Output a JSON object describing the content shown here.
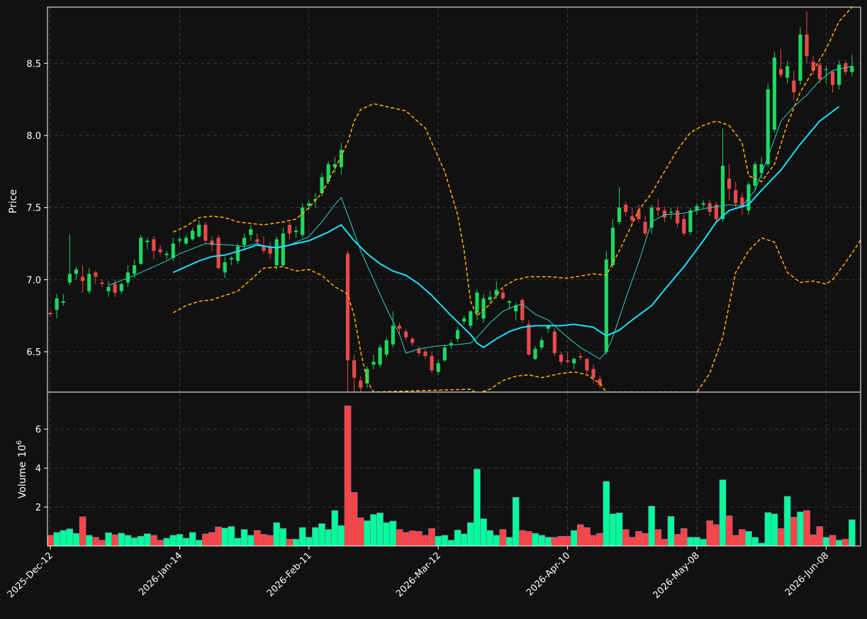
{
  "chart_data": {
    "type": "candlestick",
    "xlabels": [
      "2025-Dec-12",
      "2026-Jan-14",
      "2026-Feb-11",
      "2026-Mar-12",
      "2026-Apr-10",
      "2026-May-08",
      "2026-Jun-08"
    ],
    "xlabel_index": [
      0,
      20,
      40,
      60,
      80,
      100,
      120
    ],
    "price_panel": {
      "ylabel": "Price",
      "ylim": [
        6.22,
        8.89
      ],
      "yticks": [
        6.5,
        7.0,
        7.5,
        8.0,
        8.5
      ]
    },
    "volume_panel": {
      "ylabel": "Volume",
      "ylabel_exp": "6",
      "ylim": [
        0,
        7.9
      ],
      "yticks": [
        2,
        4,
        6
      ]
    },
    "grid": true,
    "colors": {
      "background": "#111111",
      "up": "#1ed760",
      "down": "#e84a4a",
      "vol_up": "#00ff99",
      "vol_down": "#ff4444",
      "ma_fast": "#2ad3c8",
      "ma_slow": "#1ae0ff",
      "bands": "#ffa500",
      "grid": "#3a3a3a",
      "text": "#ffffff"
    },
    "volume": [
      0.55,
      0.7,
      0.8,
      0.88,
      0.65,
      1.5,
      0.55,
      0.45,
      0.3,
      0.68,
      0.58,
      0.66,
      0.55,
      0.42,
      0.5,
      0.63,
      0.55,
      0.3,
      0.4,
      0.55,
      0.6,
      0.4,
      0.7,
      0.3,
      0.62,
      0.7,
      0.98,
      0.92,
      1.0,
      0.4,
      0.85,
      0.55,
      0.8,
      0.6,
      0.55,
      1.2,
      0.9,
      0.35,
      0.35,
      0.95,
      0.45,
      0.95,
      1.15,
      0.85,
      1.82,
      1.05,
      7.2,
      2.75,
      1.45,
      1.3,
      1.62,
      1.7,
      1.2,
      1.28,
      0.85,
      0.7,
      0.78,
      0.75,
      0.55,
      0.9,
      0.5,
      0.55,
      0.3,
      0.82,
      0.62,
      1.2,
      3.95,
      1.4,
      0.8,
      0.55,
      0.85,
      0.45,
      2.5,
      0.8,
      0.75,
      0.65,
      0.55,
      0.45,
      0.45,
      0.5,
      0.5,
      0.8,
      1.1,
      0.95,
      0.55,
      0.65,
      3.32,
      1.65,
      1.7,
      0.85,
      0.45,
      0.75,
      0.65,
      2.05,
      0.85,
      0.35,
      1.52,
      0.6,
      0.9,
      0.45,
      0.45,
      0.35,
      1.3,
      1.1,
      3.4,
      1.55,
      0.55,
      0.85,
      0.75,
      0.45,
      0.15,
      1.72,
      1.65,
      0.9,
      2.55,
      1.48,
      1.75,
      1.82,
      0.58,
      1.0,
      0.45,
      0.55,
      0.3,
      0.35,
      1.35
    ],
    "ohlc": [
      [
        6.77,
        6.78,
        6.74,
        6.76
      ],
      [
        6.79,
        6.9,
        6.73,
        6.87
      ],
      [
        6.84,
        6.9,
        6.82,
        6.85
      ],
      [
        6.98,
        7.31,
        6.96,
        7.04
      ],
      [
        7.04,
        7.09,
        7.0,
        7.07
      ],
      [
        7.02,
        7.1,
        6.91,
        6.99
      ],
      [
        6.92,
        7.08,
        6.9,
        7.04
      ],
      [
        7.05,
        7.06,
        6.97,
        7.02
      ],
      [
        6.98,
        7.0,
        6.95,
        6.97
      ],
      [
        6.92,
        6.99,
        6.88,
        6.95
      ],
      [
        6.97,
        7.0,
        6.88,
        6.91
      ],
      [
        6.92,
        6.98,
        6.9,
        6.97
      ],
      [
        6.98,
        7.1,
        6.95,
        7.05
      ],
      [
        7.04,
        7.14,
        7.01,
        7.1
      ],
      [
        7.11,
        7.31,
        7.1,
        7.29
      ],
      [
        7.26,
        7.29,
        7.21,
        7.27
      ],
      [
        7.28,
        7.3,
        7.14,
        7.2
      ],
      [
        7.21,
        7.24,
        7.17,
        7.19
      ],
      [
        7.17,
        7.2,
        7.14,
        7.18
      ],
      [
        7.15,
        7.29,
        7.13,
        7.25
      ],
      [
        7.27,
        7.3,
        7.25,
        7.28
      ],
      [
        7.25,
        7.31,
        7.24,
        7.29
      ],
      [
        7.28,
        7.36,
        7.27,
        7.34
      ],
      [
        7.3,
        7.41,
        7.29,
        7.38
      ],
      [
        7.38,
        7.4,
        7.25,
        7.27
      ],
      [
        7.27,
        7.3,
        7.2,
        7.24
      ],
      [
        7.29,
        7.31,
        7.07,
        7.08
      ],
      [
        7.05,
        7.16,
        7.01,
        7.12
      ],
      [
        7.14,
        7.16,
        7.1,
        7.15
      ],
      [
        7.13,
        7.25,
        7.11,
        7.23
      ],
      [
        7.24,
        7.32,
        7.2,
        7.29
      ],
      [
        7.31,
        7.38,
        7.27,
        7.35
      ],
      [
        7.28,
        7.32,
        7.24,
        7.26
      ],
      [
        7.23,
        7.3,
        7.18,
        7.2
      ],
      [
        7.22,
        7.26,
        7.15,
        7.18
      ],
      [
        7.1,
        7.3,
        7.07,
        7.28
      ],
      [
        7.1,
        7.36,
        7.09,
        7.32
      ],
      [
        7.38,
        7.4,
        7.28,
        7.32
      ],
      [
        7.33,
        7.37,
        7.29,
        7.34
      ],
      [
        7.31,
        7.53,
        7.29,
        7.5
      ],
      [
        7.51,
        7.55,
        7.48,
        7.53
      ],
      [
        7.55,
        7.6,
        7.5,
        7.56
      ],
      [
        7.6,
        7.74,
        7.58,
        7.71
      ],
      [
        7.68,
        7.82,
        7.66,
        7.8
      ],
      [
        7.78,
        7.85,
        7.74,
        7.8
      ],
      [
        7.78,
        7.95,
        7.73,
        7.9
      ],
      [
        7.18,
        7.2,
        6.22,
        6.44
      ],
      [
        6.44,
        6.48,
        6.22,
        6.32
      ],
      [
        6.3,
        6.33,
        6.15,
        6.25
      ],
      [
        6.28,
        6.4,
        6.25,
        6.38
      ],
      [
        6.41,
        6.48,
        6.38,
        6.43
      ],
      [
        6.41,
        6.55,
        6.39,
        6.53
      ],
      [
        6.48,
        6.6,
        6.46,
        6.58
      ],
      [
        6.55,
        6.78,
        6.53,
        6.68
      ],
      [
        6.68,
        6.7,
        6.62,
        6.66
      ],
      [
        6.64,
        6.66,
        6.58,
        6.6
      ],
      [
        6.59,
        6.6,
        6.54,
        6.56
      ],
      [
        6.52,
        6.54,
        6.47,
        6.49
      ],
      [
        6.5,
        6.52,
        6.45,
        6.47
      ],
      [
        6.47,
        6.5,
        6.35,
        6.37
      ],
      [
        6.36,
        6.44,
        6.34,
        6.42
      ],
      [
        6.44,
        6.55,
        6.43,
        6.53
      ],
      [
        6.55,
        6.58,
        6.52,
        6.56
      ],
      [
        6.59,
        6.67,
        6.57,
        6.65
      ],
      [
        6.71,
        6.75,
        6.69,
        6.73
      ],
      [
        6.68,
        6.79,
        6.66,
        6.78
      ],
      [
        6.77,
        6.93,
        6.72,
        6.91
      ],
      [
        6.73,
        6.9,
        6.7,
        6.87
      ],
      [
        6.86,
        6.92,
        6.84,
        6.88
      ],
      [
        6.89,
        6.99,
        6.87,
        6.93
      ],
      [
        6.91,
        6.94,
        6.86,
        6.87
      ],
      [
        6.84,
        6.86,
        6.8,
        6.85
      ],
      [
        6.78,
        6.84,
        6.72,
        6.82
      ],
      [
        6.86,
        6.87,
        6.7,
        6.72
      ],
      [
        6.69,
        6.72,
        6.47,
        6.48
      ],
      [
        6.45,
        6.54,
        6.44,
        6.52
      ],
      [
        6.53,
        6.6,
        6.51,
        6.58
      ],
      [
        6.66,
        6.69,
        6.63,
        6.68
      ],
      [
        6.64,
        6.66,
        6.47,
        6.49
      ],
      [
        6.48,
        6.5,
        6.41,
        6.43
      ],
      [
        6.44,
        6.5,
        6.42,
        6.43
      ],
      [
        6.42,
        6.46,
        6.38,
        6.45
      ],
      [
        6.47,
        6.49,
        6.44,
        6.46
      ],
      [
        6.45,
        6.46,
        6.35,
        6.37
      ],
      [
        6.38,
        6.41,
        6.28,
        6.32
      ],
      [
        6.31,
        6.33,
        6.25,
        6.27
      ],
      [
        6.5,
        7.2,
        6.48,
        7.14
      ],
      [
        7.1,
        7.42,
        7.08,
        7.36
      ],
      [
        7.4,
        7.64,
        7.38,
        7.5
      ],
      [
        7.52,
        7.54,
        7.44,
        7.47
      ],
      [
        7.44,
        7.5,
        7.38,
        7.41
      ],
      [
        7.48,
        7.52,
        7.4,
        7.42
      ],
      [
        7.4,
        7.44,
        7.3,
        7.32
      ],
      [
        7.36,
        7.52,
        7.32,
        7.5
      ],
      [
        7.5,
        7.56,
        7.44,
        7.48
      ],
      [
        7.48,
        7.51,
        7.4,
        7.43
      ],
      [
        7.47,
        7.5,
        7.42,
        7.47
      ],
      [
        7.48,
        7.51,
        7.36,
        7.39
      ],
      [
        7.42,
        7.45,
        7.3,
        7.32
      ],
      [
        7.33,
        7.5,
        7.31,
        7.48
      ],
      [
        7.48,
        7.53,
        7.45,
        7.51
      ],
      [
        7.52,
        7.55,
        7.49,
        7.53
      ],
      [
        7.53,
        7.55,
        7.44,
        7.47
      ],
      [
        7.52,
        7.54,
        7.4,
        7.42
      ],
      [
        7.42,
        8.05,
        7.4,
        7.79
      ],
      [
        7.7,
        7.8,
        7.55,
        7.63
      ],
      [
        7.62,
        7.68,
        7.5,
        7.53
      ],
      [
        7.57,
        7.6,
        7.45,
        7.5
      ],
      [
        7.48,
        7.68,
        7.45,
        7.66
      ],
      [
        7.65,
        7.82,
        7.62,
        7.8
      ],
      [
        7.74,
        7.85,
        7.7,
        7.8
      ],
      [
        7.8,
        8.36,
        7.78,
        8.32
      ],
      [
        8.04,
        8.58,
        8.02,
        8.54
      ],
      [
        8.46,
        8.6,
        8.4,
        8.42
      ],
      [
        8.4,
        8.52,
        8.36,
        8.48
      ],
      [
        8.38,
        8.45,
        8.25,
        8.3
      ],
      [
        8.38,
        8.75,
        8.35,
        8.7
      ],
      [
        8.7,
        8.86,
        8.5,
        8.55
      ],
      [
        8.51,
        8.55,
        8.42,
        8.45
      ],
      [
        8.49,
        8.51,
        8.36,
        8.39
      ],
      [
        8.46,
        8.48,
        8.36,
        8.46
      ],
      [
        8.44,
        8.45,
        8.3,
        8.35
      ],
      [
        8.35,
        8.52,
        8.32,
        8.49
      ],
      [
        8.5,
        8.52,
        8.42,
        8.44
      ],
      [
        8.44,
        8.56,
        8.41,
        8.48
      ]
    ],
    "ma_fast": [
      [
        9,
        6.96
      ],
      [
        13,
        7.03
      ],
      [
        18,
        7.13
      ],
      [
        20,
        7.18
      ],
      [
        24,
        7.25
      ],
      [
        28,
        7.24
      ],
      [
        30,
        7.23
      ],
      [
        32,
        7.25
      ],
      [
        34,
        7.22
      ],
      [
        37,
        7.24
      ],
      [
        40,
        7.3
      ],
      [
        42,
        7.4
      ],
      [
        44,
        7.52
      ],
      [
        45,
        7.57
      ],
      [
        46,
        7.45
      ],
      [
        48,
        7.2
      ],
      [
        50,
        7.0
      ],
      [
        52,
        6.8
      ],
      [
        54,
        6.62
      ],
      [
        55,
        6.49
      ],
      [
        57,
        6.52
      ],
      [
        60,
        6.54
      ],
      [
        63,
        6.55
      ],
      [
        65,
        6.56
      ],
      [
        66,
        6.6
      ],
      [
        68,
        6.7
      ],
      [
        70,
        6.78
      ],
      [
        72,
        6.82
      ],
      [
        73,
        6.83
      ],
      [
        75,
        6.76
      ],
      [
        77,
        6.72
      ],
      [
        80,
        6.6
      ],
      [
        82,
        6.53
      ],
      [
        85,
        6.45
      ],
      [
        86,
        6.5
      ],
      [
        87,
        6.6
      ],
      [
        89,
        6.87
      ],
      [
        91,
        7.12
      ],
      [
        93,
        7.4
      ],
      [
        95,
        7.45
      ],
      [
        98,
        7.46
      ],
      [
        102,
        7.5
      ],
      [
        105,
        7.52
      ],
      [
        107,
        7.51
      ],
      [
        109,
        7.62
      ],
      [
        111,
        7.85
      ],
      [
        113,
        8.1
      ],
      [
        115,
        8.2
      ],
      [
        117,
        8.28
      ],
      [
        119,
        8.38
      ],
      [
        121,
        8.45
      ],
      [
        124,
        8.48
      ]
    ],
    "ma_slow": [
      [
        19,
        7.05
      ],
      [
        21,
        7.09
      ],
      [
        23,
        7.13
      ],
      [
        25,
        7.16
      ],
      [
        27,
        7.17
      ],
      [
        30,
        7.21
      ],
      [
        32,
        7.24
      ],
      [
        35,
        7.22
      ],
      [
        37,
        7.24
      ],
      [
        40,
        7.27
      ],
      [
        43,
        7.33
      ],
      [
        45,
        7.38
      ],
      [
        47,
        7.27
      ],
      [
        49,
        7.18
      ],
      [
        51,
        7.11
      ],
      [
        53,
        7.06
      ],
      [
        55,
        7.03
      ],
      [
        57,
        6.97
      ],
      [
        59,
        6.89
      ],
      [
        62,
        6.75
      ],
      [
        65,
        6.62
      ],
      [
        66,
        6.56
      ],
      [
        67,
        6.53
      ],
      [
        69,
        6.59
      ],
      [
        71,
        6.64
      ],
      [
        73,
        6.67
      ],
      [
        75,
        6.68
      ],
      [
        77,
        6.68
      ],
      [
        79,
        6.68
      ],
      [
        81,
        6.69
      ],
      [
        84,
        6.67
      ],
      [
        86,
        6.61
      ],
      [
        88,
        6.65
      ],
      [
        90,
        6.72
      ],
      [
        93,
        6.82
      ],
      [
        95,
        6.93
      ],
      [
        98,
        7.09
      ],
      [
        101,
        7.27
      ],
      [
        103,
        7.4
      ],
      [
        105,
        7.48
      ],
      [
        108,
        7.52
      ],
      [
        110,
        7.62
      ],
      [
        113,
        7.76
      ],
      [
        116,
        7.94
      ],
      [
        119,
        8.1
      ],
      [
        122,
        8.2
      ]
    ],
    "band_upper": [
      [
        19,
        7.33
      ],
      [
        21,
        7.37
      ],
      [
        23,
        7.43
      ],
      [
        25,
        7.44
      ],
      [
        27,
        7.43
      ],
      [
        29,
        7.4
      ],
      [
        31,
        7.39
      ],
      [
        33,
        7.38
      ],
      [
        36,
        7.4
      ],
      [
        38,
        7.42
      ],
      [
        40,
        7.5
      ],
      [
        42,
        7.6
      ],
      [
        44,
        7.77
      ],
      [
        46,
        7.95
      ],
      [
        47,
        8.1
      ],
      [
        48,
        8.18
      ],
      [
        50,
        8.22
      ],
      [
        52,
        8.2
      ],
      [
        55,
        8.17
      ],
      [
        58,
        8.05
      ],
      [
        61,
        7.75
      ],
      [
        63,
        7.45
      ],
      [
        64,
        7.2
      ],
      [
        65,
        6.85
      ],
      [
        66,
        6.75
      ],
      [
        68,
        6.83
      ],
      [
        70,
        6.95
      ],
      [
        72,
        7.0
      ],
      [
        74,
        7.02
      ],
      [
        77,
        7.02
      ],
      [
        80,
        7.01
      ],
      [
        84,
        7.04
      ],
      [
        86,
        7.03
      ],
      [
        88,
        7.2
      ],
      [
        91,
        7.48
      ],
      [
        93,
        7.6
      ],
      [
        95,
        7.75
      ],
      [
        97,
        7.9
      ],
      [
        99,
        8.02
      ],
      [
        101,
        8.07
      ],
      [
        103,
        8.1
      ],
      [
        105,
        8.07
      ],
      [
        107,
        7.95
      ],
      [
        108,
        7.72
      ],
      [
        110,
        7.68
      ],
      [
        112,
        7.8
      ],
      [
        114,
        8.08
      ],
      [
        116,
        8.3
      ],
      [
        118,
        8.45
      ],
      [
        120,
        8.6
      ],
      [
        122,
        8.79
      ],
      [
        124,
        8.89
      ]
    ],
    "band_lower": [
      [
        19,
        6.77
      ],
      [
        21,
        6.82
      ],
      [
        23,
        6.85
      ],
      [
        25,
        6.86
      ],
      [
        27,
        6.89
      ],
      [
        29,
        6.92
      ],
      [
        31,
        7.0
      ],
      [
        33,
        7.08
      ],
      [
        36,
        7.09
      ],
      [
        38,
        7.06
      ],
      [
        40,
        7.07
      ],
      [
        42,
        7.03
      ],
      [
        44,
        6.95
      ],
      [
        46,
        6.9
      ],
      [
        47,
        6.75
      ],
      [
        48,
        6.5
      ],
      [
        49,
        6.3
      ],
      [
        50,
        6.22
      ],
      [
        65,
        6.24
      ],
      [
        66,
        6.21
      ],
      [
        68,
        6.24
      ],
      [
        70,
        6.3
      ],
      [
        72,
        6.33
      ],
      [
        74,
        6.34
      ],
      [
        76,
        6.32
      ],
      [
        79,
        6.35
      ],
      [
        81,
        6.36
      ],
      [
        83,
        6.34
      ],
      [
        85,
        6.28
      ],
      [
        86,
        6.22
      ],
      [
        100,
        6.22
      ],
      [
        102,
        6.35
      ],
      [
        104,
        6.6
      ],
      [
        106,
        7.05
      ],
      [
        108,
        7.2
      ],
      [
        110,
        7.29
      ],
      [
        112,
        7.26
      ],
      [
        114,
        7.05
      ],
      [
        116,
        6.98
      ],
      [
        118,
        6.99
      ],
      [
        120,
        6.97
      ],
      [
        121,
        7.0
      ],
      [
        123,
        7.12
      ],
      [
        125,
        7.25
      ],
      [
        127,
        7.42
      ]
    ]
  }
}
